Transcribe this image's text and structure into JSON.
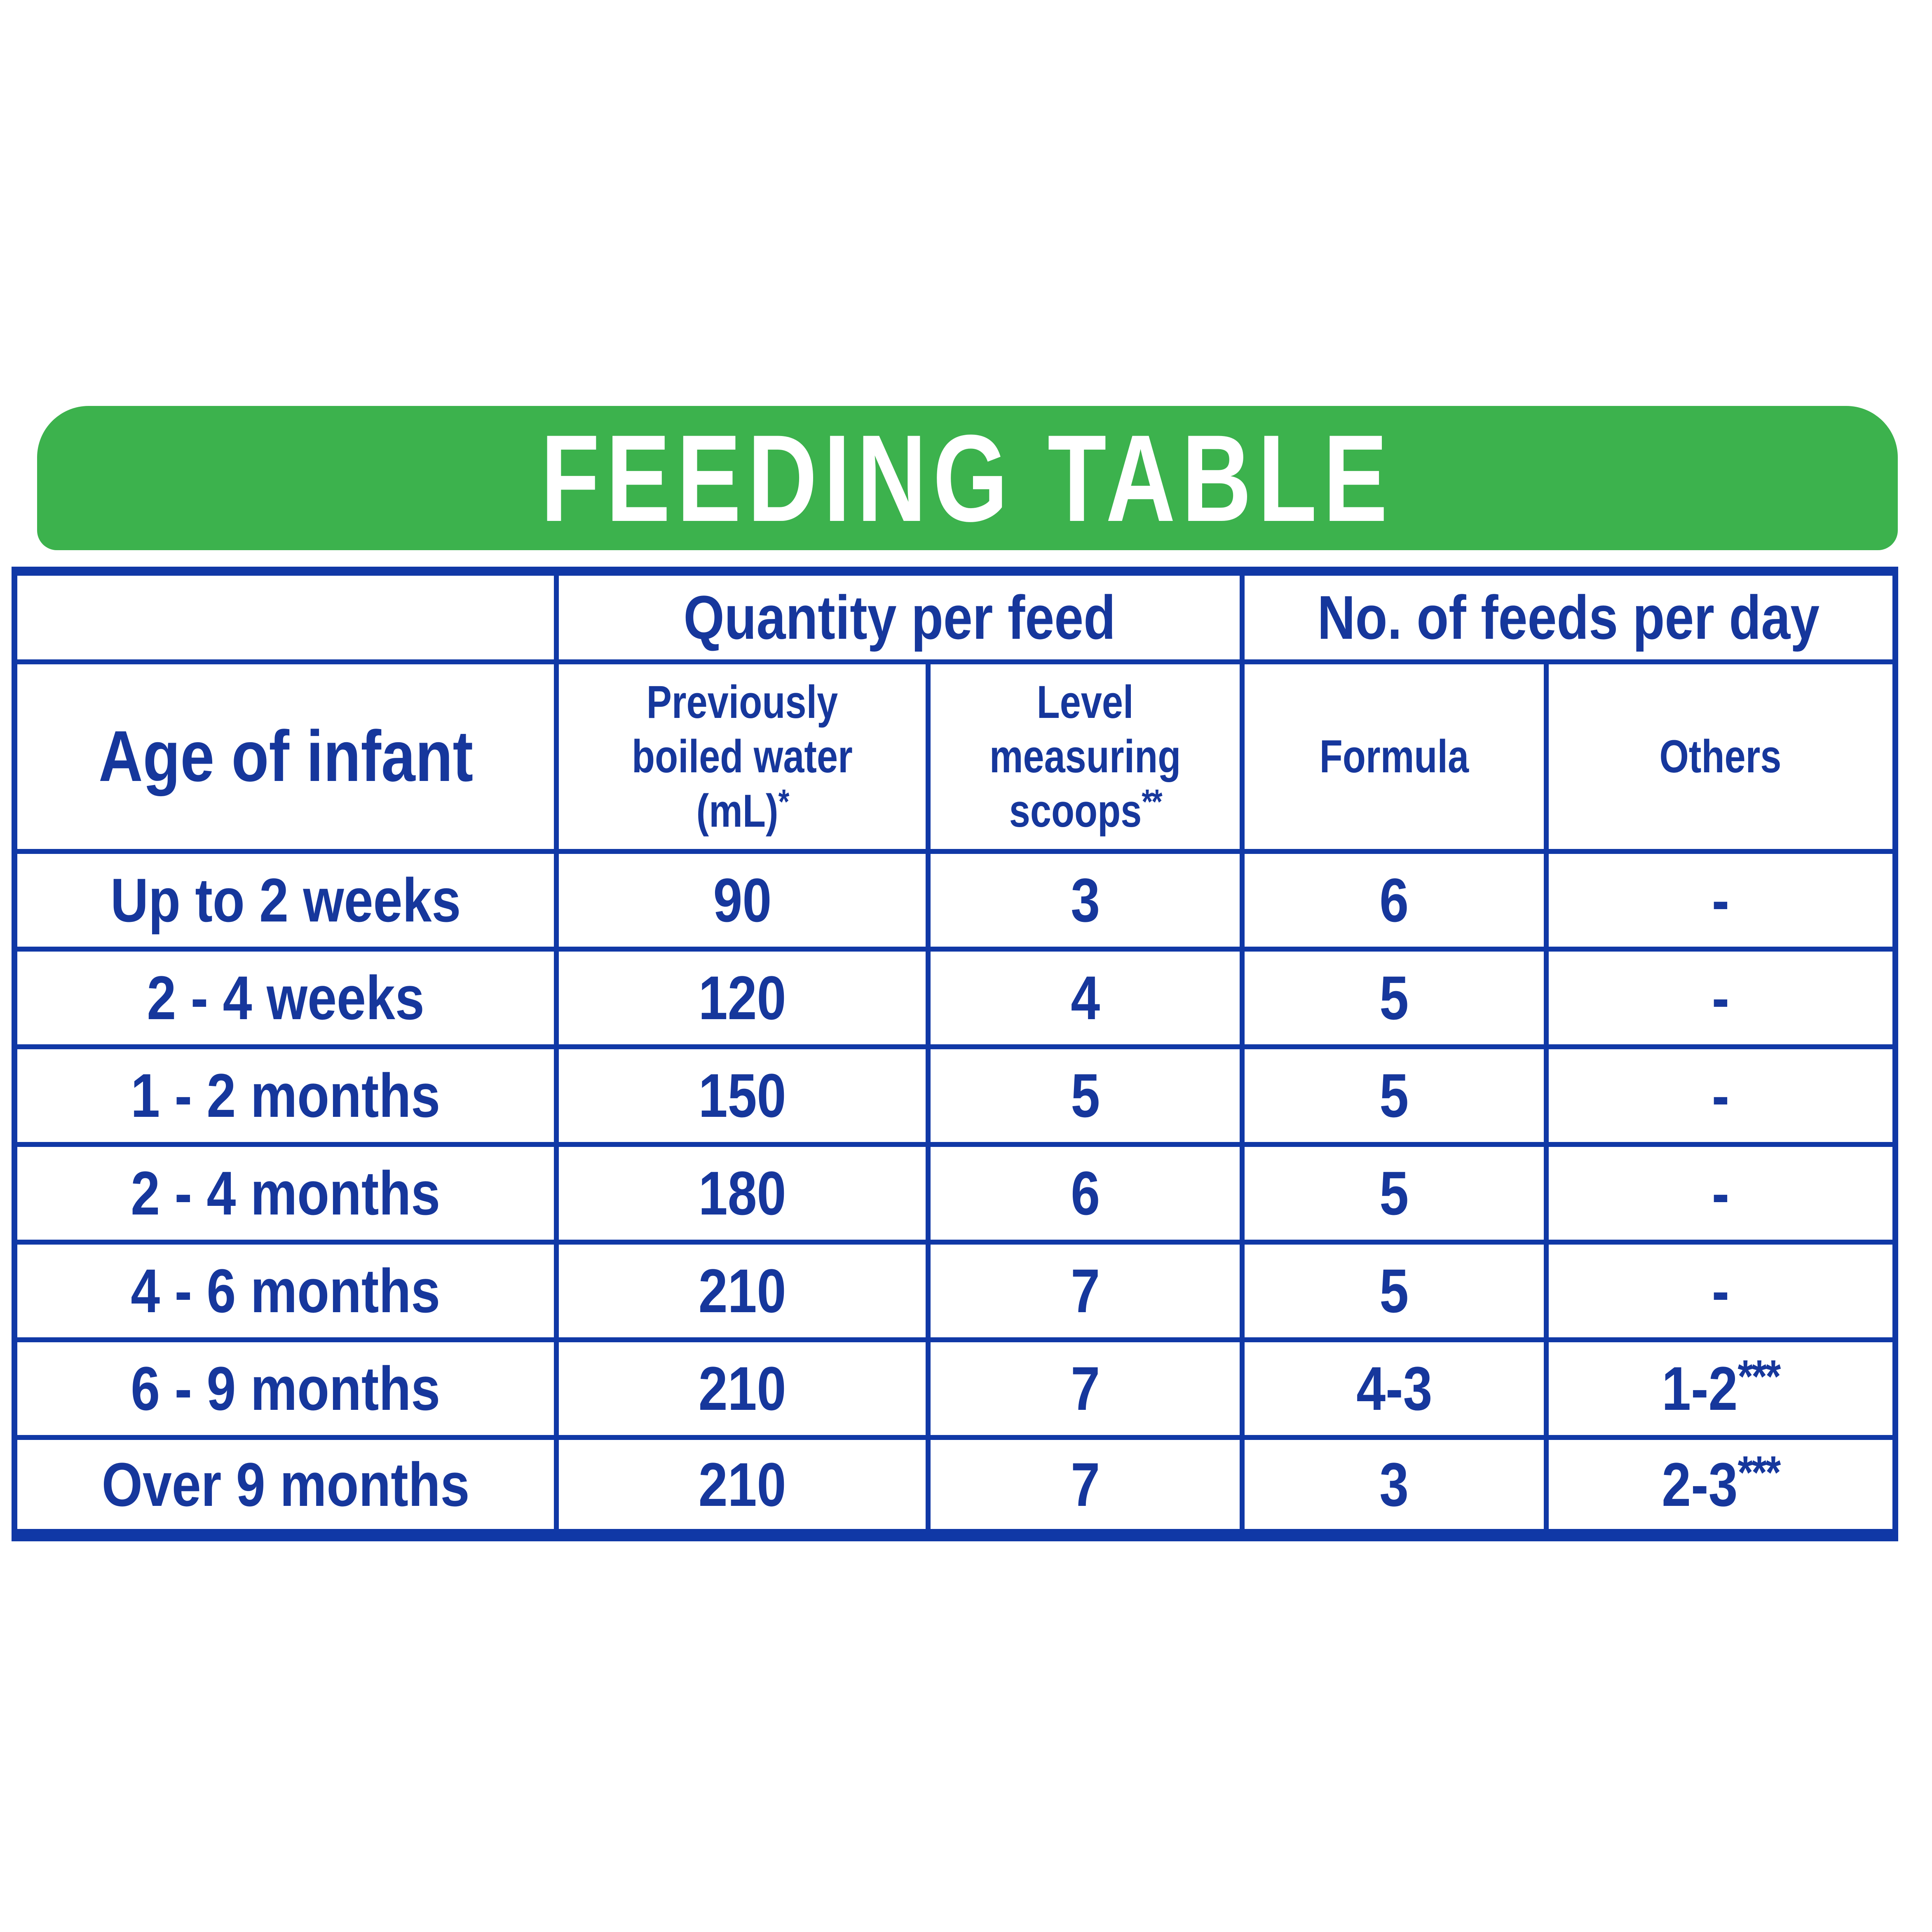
{
  "banner": {
    "title": "FEEDING TABLE",
    "bg_color": "#3CB24D",
    "text_color": "#FFFFFF"
  },
  "table": {
    "border_color": "#1038A6",
    "text_color": "#16379C",
    "group_headers": {
      "quantity": "Quantity per feed",
      "feeds": "No. of feeds per day"
    },
    "columns": {
      "age": "Age of infant",
      "water": "Previously\nboiled water (mL)*",
      "scoops": "Level measuring\nscoops**",
      "formula": "Formula",
      "others": "Others"
    },
    "rows": [
      {
        "age": "Up to 2 weeks",
        "water": "90",
        "scoops": "3",
        "formula": "6",
        "others": "-"
      },
      {
        "age": "2 - 4 weeks",
        "water": "120",
        "scoops": "4",
        "formula": "5",
        "others": "-"
      },
      {
        "age": "1 - 2 months",
        "water": "150",
        "scoops": "5",
        "formula": "5",
        "others": "-"
      },
      {
        "age": "2 - 4 months",
        "water": "180",
        "scoops": "6",
        "formula": "5",
        "others": "-"
      },
      {
        "age": "4 - 6 months",
        "water": "210",
        "scoops": "7",
        "formula": "5",
        "others": "-"
      },
      {
        "age": "6 - 9 months",
        "water": "210",
        "scoops": "7",
        "formula": "4-3",
        "others": "1-2***"
      },
      {
        "age": "Over 9 months",
        "water": "210",
        "scoops": "7",
        "formula": "3",
        "others": "2-3***"
      }
    ]
  }
}
